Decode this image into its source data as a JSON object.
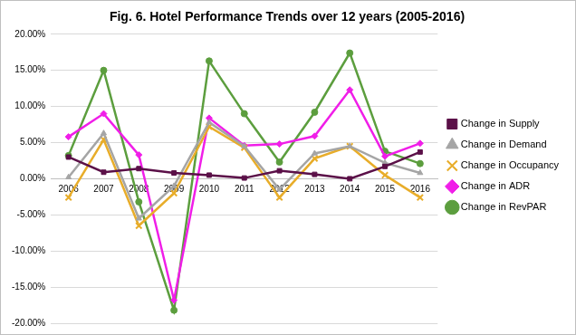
{
  "chart_data": {
    "type": "line",
    "title": "Fig. 6. Hotel Performance Trends over 12 years (2005-2016)",
    "categories": [
      "2006",
      "2007",
      "2008",
      "2009",
      "2010",
      "2011",
      "2012",
      "2013",
      "2014",
      "2015",
      "2016"
    ],
    "series": [
      {
        "name": "Change in Supply",
        "color": "#5b1048",
        "marker": "square",
        "values": [
          3.0,
          0.9,
          1.4,
          0.8,
          0.5,
          0.1,
          1.1,
          0.6,
          0.0,
          1.7,
          3.7
        ]
      },
      {
        "name": "Change in Demand",
        "color": "#a5a5a5",
        "marker": "triangle",
        "values": [
          0.2,
          6.3,
          -5.5,
          -1.0,
          7.8,
          4.5,
          -1.5,
          3.5,
          4.5,
          2.2,
          0.8
        ]
      },
      {
        "name": "Change in Occupancy",
        "color": "#e8ad2a",
        "marker": "x",
        "values": [
          -2.6,
          5.4,
          -6.5,
          -2.0,
          7.2,
          4.3,
          -2.6,
          2.8,
          4.5,
          0.5,
          -2.6
        ]
      },
      {
        "name": "Change in ADR",
        "color": "#f01ee8",
        "marker": "diamond",
        "values": [
          5.8,
          9.0,
          3.3,
          -16.8,
          8.4,
          4.6,
          4.8,
          5.9,
          12.3,
          3.1,
          4.9
        ]
      },
      {
        "name": "Change in RevPAR",
        "color": "#5c9e3e",
        "marker": "circle",
        "values": [
          3.2,
          15.0,
          -3.2,
          -18.2,
          16.3,
          9.0,
          2.3,
          9.2,
          17.4,
          3.8,
          2.1
        ]
      }
    ],
    "ylim": [
      -20,
      20
    ],
    "yticks": [
      {
        "value": -20,
        "label": "-20.00%"
      },
      {
        "value": -15,
        "label": "-15.00%"
      },
      {
        "value": -10,
        "label": "-10.00%"
      },
      {
        "value": -5,
        "label": "-5.00%"
      },
      {
        "value": 0,
        "label": "0.00%"
      },
      {
        "value": 5,
        "label": "5.00%"
      },
      {
        "value": 10,
        "label": "10.00%"
      },
      {
        "value": 15,
        "label": "15.00%"
      },
      {
        "value": 20,
        "label": "20.00%"
      }
    ],
    "grid": true,
    "legend": "right"
  }
}
